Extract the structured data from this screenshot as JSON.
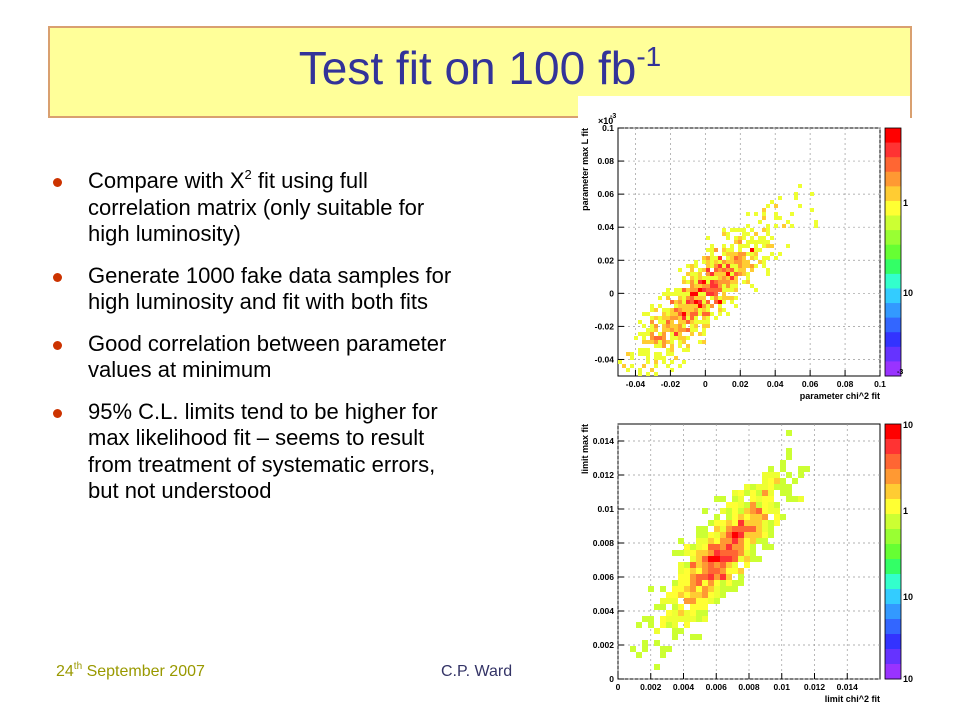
{
  "slide": {
    "title_main": "Test fit on 100 fb",
    "title_sup": "-1",
    "bullets": [
      {
        "before": "Compare with X",
        "sup": "2",
        "after": " fit using full correlation matrix (only suitable for high luminosity)"
      },
      {
        "before": "Generate 1000 fake data samples for high luminosity and fit with both fits",
        "sup": "",
        "after": ""
      },
      {
        "before": "Good correlation between parameter values at minimum",
        "sup": "",
        "after": ""
      },
      {
        "before": "95% C.L. limits tend to be higher for max likelihood fit – seems to result from treatment of systematic errors, but not understood",
        "sup": "",
        "after": ""
      }
    ],
    "footer": {
      "date_day": "24",
      "date_sup": "th",
      "date_rest": " September 2007",
      "author": "C.P. Ward"
    },
    "colors": {
      "title": "#333399",
      "title_bg": "#ffff99",
      "title_border": "#d9a070",
      "bullet": "#cc3300",
      "date": "#999900"
    }
  },
  "chart_data": [
    {
      "type": "heatmap",
      "xlabel": "parameter chi^2 fit",
      "ylabel": "parameter max L fit",
      "exponent_label": "×10",
      "exponent_sup": "-3",
      "xlim": [
        -0.05,
        0.1
      ],
      "ylim": [
        -0.05,
        0.1
      ],
      "x_ticks": [
        "-0.04",
        "-0.02",
        "0",
        "0.02",
        "0.04",
        "0.06",
        "0.08",
        "0.1"
      ],
      "y_ticks": [
        "-0.04",
        "-0.02",
        "0",
        "0.02",
        "0.04",
        "0.06",
        "0.08",
        "0.1"
      ],
      "colorbar_labels": [
        "1",
        "10"
      ],
      "colorbar_exp": "-3",
      "correlation": "strong positive",
      "center": [
        0.0,
        0.0
      ],
      "spread": [
        0.02,
        0.022
      ]
    },
    {
      "type": "heatmap",
      "xlabel": "limit chi^2 fit",
      "ylabel": "limit max fit",
      "xlim": [
        0,
        0.016
      ],
      "ylim": [
        0,
        0.015
      ],
      "x_ticks": [
        "0",
        "0.002",
        "0.004",
        "0.006",
        "0.008",
        "0.01",
        "0.012",
        "0.014"
      ],
      "y_ticks": [
        "0",
        "0.002",
        "0.004",
        "0.006",
        "0.008",
        "0.01",
        "0.012",
        "0.014"
      ],
      "colorbar_labels": [
        "10",
        "1",
        "10",
        "10"
      ],
      "correlation": "strong positive",
      "center": [
        0.0065,
        0.0075
      ],
      "spread": [
        0.0018,
        0.0022
      ]
    }
  ]
}
